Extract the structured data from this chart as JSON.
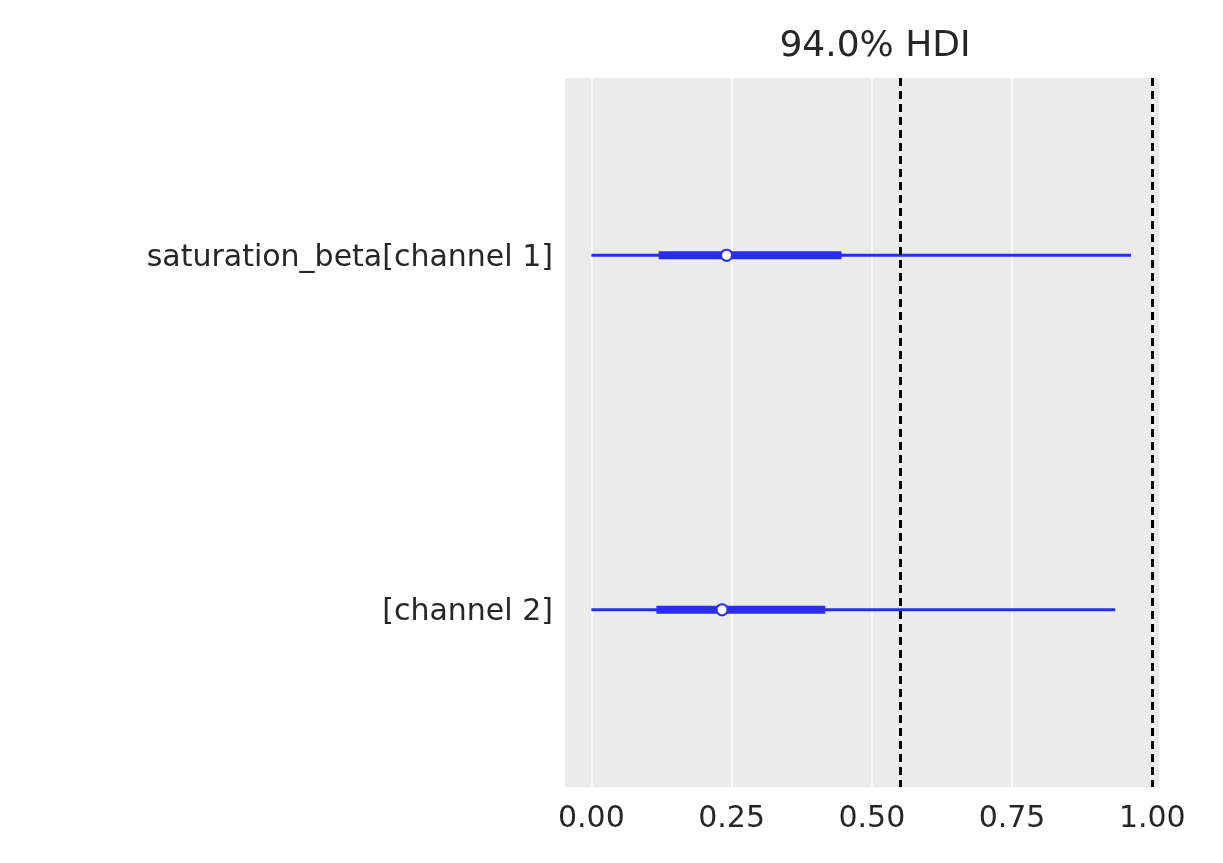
{
  "chart_data": {
    "type": "box",
    "orientation": "horizontal",
    "title": "94.0% HDI",
    "categories": [
      "saturation_beta[channel 1]",
      "[channel 2]"
    ],
    "boxes": [
      {
        "low": 0,
        "q1": 0.12,
        "median": 0.241,
        "q3": 0.446,
        "high": 0.962
      },
      {
        "low": 0,
        "q1": 0.116,
        "median": 0.233,
        "q3": 0.417,
        "high": 0.934
      }
    ],
    "color": "#2a2eec",
    "xlim": [
      -0.047,
      1.012
    ],
    "xticks": [
      {
        "value": 0,
        "label": "0.00"
      },
      {
        "value": 0.25,
        "label": "0.25"
      },
      {
        "value": 0.5,
        "label": "0.50"
      },
      {
        "value": 0.75,
        "label": "0.75"
      },
      {
        "value": 1,
        "label": "1.00"
      }
    ],
    "ref_lines": [
      {
        "axis": "x",
        "value": 0.55,
        "color": "#000000",
        "line_style": "dashed"
      },
      {
        "axis": "x",
        "value": 1.0,
        "color": "#000000",
        "line_style": "dashed"
      }
    ],
    "grid": "x"
  }
}
